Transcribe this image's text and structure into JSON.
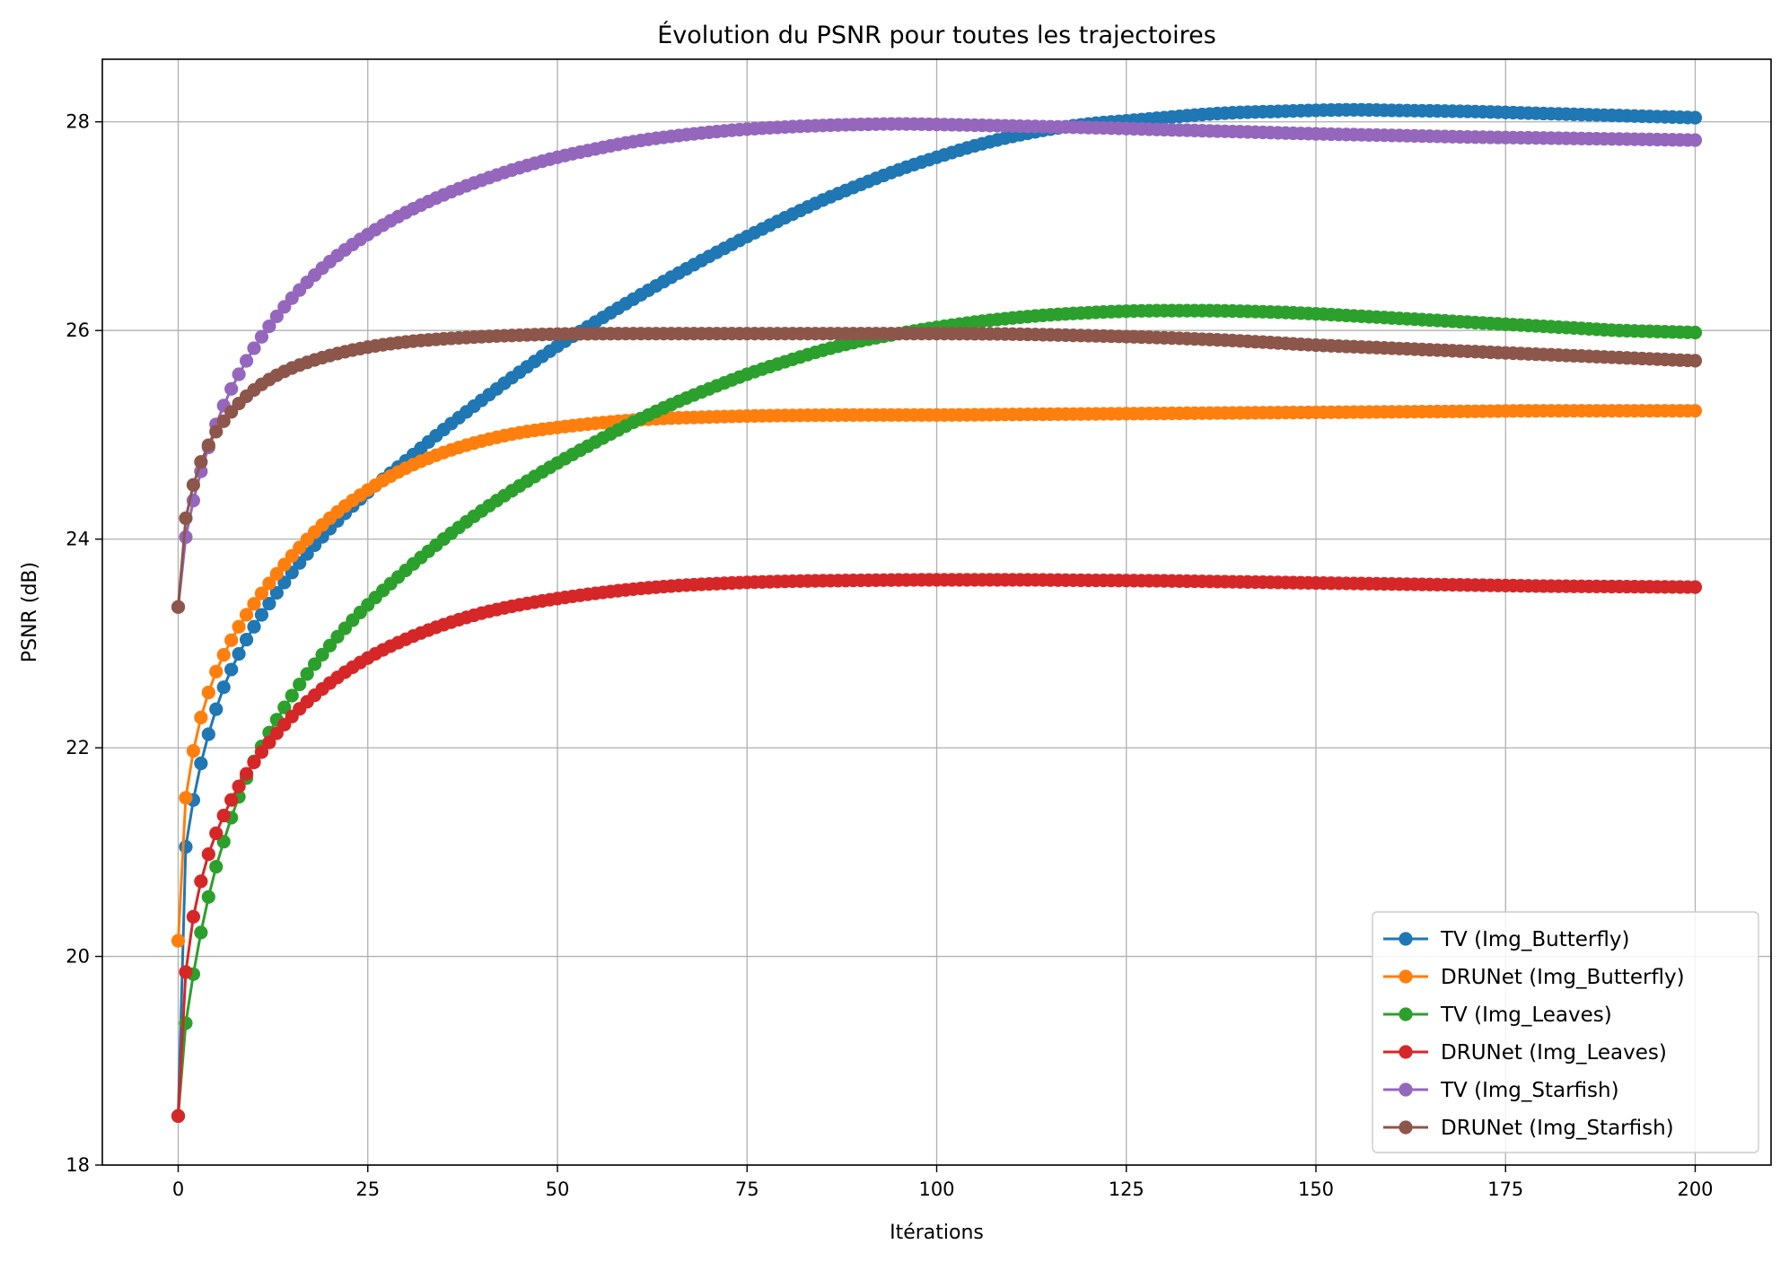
{
  "chart_data": {
    "type": "line",
    "title": "Évolution du PSNR pour toutes les trajectoires",
    "xlabel": "Itérations",
    "ylabel": "PSNR (dB)",
    "xlim": [
      -10,
      210
    ],
    "ylim": [
      18,
      28.6
    ],
    "xticks": [
      0,
      25,
      50,
      75,
      100,
      125,
      150,
      175,
      200
    ],
    "yticks": [
      18,
      20,
      22,
      24,
      26,
      28
    ],
    "grid": true,
    "legend_position": "lower-right",
    "marker": "circle",
    "x": {
      "start": 0,
      "end": 200,
      "step": 1
    },
    "series": [
      {
        "name": "TV (Img_Butterfly)",
        "color": "#1f77b4",
        "anchors": [
          [
            0,
            18.47
          ],
          [
            1,
            21.05
          ],
          [
            2,
            21.5
          ],
          [
            3,
            21.85
          ],
          [
            4,
            22.13
          ],
          [
            5,
            22.37
          ],
          [
            6,
            22.58
          ],
          [
            8,
            22.9
          ],
          [
            10,
            23.16
          ],
          [
            15,
            23.68
          ],
          [
            20,
            24.1
          ],
          [
            25,
            24.45
          ],
          [
            30,
            24.75
          ],
          [
            35,
            25.05
          ],
          [
            40,
            25.33
          ],
          [
            45,
            25.6
          ],
          [
            50,
            25.85
          ],
          [
            55,
            26.08
          ],
          [
            60,
            26.3
          ],
          [
            65,
            26.51
          ],
          [
            70,
            26.71
          ],
          [
            75,
            26.9
          ],
          [
            80,
            27.08
          ],
          [
            85,
            27.25
          ],
          [
            90,
            27.4
          ],
          [
            95,
            27.54
          ],
          [
            100,
            27.66
          ],
          [
            105,
            27.77
          ],
          [
            110,
            27.86
          ],
          [
            115,
            27.93
          ],
          [
            120,
            27.98
          ],
          [
            125,
            28.01
          ],
          [
            130,
            28.04
          ],
          [
            135,
            28.07
          ],
          [
            140,
            28.09
          ],
          [
            145,
            28.1
          ],
          [
            150,
            28.11
          ],
          [
            155,
            28.115
          ],
          [
            160,
            28.11
          ],
          [
            165,
            28.105
          ],
          [
            170,
            28.1
          ],
          [
            175,
            28.09
          ],
          [
            180,
            28.08
          ],
          [
            185,
            28.07
          ],
          [
            190,
            28.06
          ],
          [
            195,
            28.05
          ],
          [
            200,
            28.04
          ]
        ]
      },
      {
        "name": "DRUNet (Img_Butterfly)",
        "color": "#ff7f0e",
        "anchors": [
          [
            0,
            20.15
          ],
          [
            1,
            21.52
          ],
          [
            2,
            21.97
          ],
          [
            3,
            22.29
          ],
          [
            4,
            22.53
          ],
          [
            5,
            22.73
          ],
          [
            6,
            22.89
          ],
          [
            8,
            23.16
          ],
          [
            10,
            23.38
          ],
          [
            15,
            23.84
          ],
          [
            20,
            24.2
          ],
          [
            25,
            24.47
          ],
          [
            30,
            24.68
          ],
          [
            35,
            24.83
          ],
          [
            40,
            24.94
          ],
          [
            45,
            25.02
          ],
          [
            50,
            25.07
          ],
          [
            55,
            25.11
          ],
          [
            60,
            25.14
          ],
          [
            65,
            25.16
          ],
          [
            70,
            25.17
          ],
          [
            75,
            25.18
          ],
          [
            80,
            25.185
          ],
          [
            90,
            25.19
          ],
          [
            100,
            25.19
          ],
          [
            110,
            25.195
          ],
          [
            120,
            25.2
          ],
          [
            130,
            25.205
          ],
          [
            140,
            25.21
          ],
          [
            150,
            25.215
          ],
          [
            160,
            25.22
          ],
          [
            170,
            25.225
          ],
          [
            180,
            25.23
          ],
          [
            190,
            25.23
          ],
          [
            200,
            25.23
          ]
        ]
      },
      {
        "name": "TV (Img_Leaves)",
        "color": "#2ca02c",
        "anchors": [
          [
            0,
            18.47
          ],
          [
            1,
            19.36
          ],
          [
            2,
            19.83
          ],
          [
            3,
            20.23
          ],
          [
            4,
            20.57
          ],
          [
            5,
            20.86
          ],
          [
            6,
            21.1
          ],
          [
            7,
            21.33
          ],
          [
            8,
            21.53
          ],
          [
            10,
            21.87
          ],
          [
            15,
            22.5
          ],
          [
            20,
            22.98
          ],
          [
            25,
            23.37
          ],
          [
            30,
            23.7
          ],
          [
            35,
            24.0
          ],
          [
            40,
            24.27
          ],
          [
            45,
            24.51
          ],
          [
            50,
            24.73
          ],
          [
            55,
            24.93
          ],
          [
            60,
            25.12
          ],
          [
            65,
            25.29
          ],
          [
            70,
            25.44
          ],
          [
            75,
            25.58
          ],
          [
            80,
            25.7
          ],
          [
            85,
            25.81
          ],
          [
            90,
            25.9
          ],
          [
            95,
            25.97
          ],
          [
            100,
            26.03
          ],
          [
            105,
            26.08
          ],
          [
            110,
            26.12
          ],
          [
            115,
            26.15
          ],
          [
            120,
            26.17
          ],
          [
            125,
            26.185
          ],
          [
            130,
            26.19
          ],
          [
            135,
            26.19
          ],
          [
            140,
            26.185
          ],
          [
            145,
            26.175
          ],
          [
            150,
            26.16
          ],
          [
            155,
            26.14
          ],
          [
            160,
            26.12
          ],
          [
            165,
            26.1
          ],
          [
            170,
            26.08
          ],
          [
            175,
            26.06
          ],
          [
            180,
            26.04
          ],
          [
            185,
            26.02
          ],
          [
            190,
            26.0
          ],
          [
            195,
            25.99
          ],
          [
            200,
            25.98
          ]
        ]
      },
      {
        "name": "DRUNet (Img_Leaves)",
        "color": "#d62728",
        "anchors": [
          [
            0,
            18.47
          ],
          [
            1,
            19.85
          ],
          [
            2,
            20.38
          ],
          [
            3,
            20.72
          ],
          [
            4,
            20.98
          ],
          [
            5,
            21.18
          ],
          [
            6,
            21.35
          ],
          [
            7,
            21.5
          ],
          [
            8,
            21.63
          ],
          [
            10,
            21.86
          ],
          [
            15,
            22.3
          ],
          [
            20,
            22.62
          ],
          [
            25,
            22.86
          ],
          [
            30,
            23.04
          ],
          [
            35,
            23.18
          ],
          [
            40,
            23.29
          ],
          [
            45,
            23.37
          ],
          [
            50,
            23.43
          ],
          [
            55,
            23.48
          ],
          [
            60,
            23.52
          ],
          [
            65,
            23.55
          ],
          [
            70,
            23.57
          ],
          [
            75,
            23.585
          ],
          [
            80,
            23.595
          ],
          [
            90,
            23.605
          ],
          [
            100,
            23.61
          ],
          [
            110,
            23.61
          ],
          [
            120,
            23.605
          ],
          [
            130,
            23.6
          ],
          [
            140,
            23.59
          ],
          [
            150,
            23.58
          ],
          [
            160,
            23.57
          ],
          [
            170,
            23.56
          ],
          [
            180,
            23.55
          ],
          [
            190,
            23.545
          ],
          [
            200,
            23.54
          ]
        ]
      },
      {
        "name": "TV (Img_Starfish)",
        "color": "#9467bd",
        "anchors": [
          [
            0,
            23.35
          ],
          [
            1,
            24.02
          ],
          [
            2,
            24.37
          ],
          [
            3,
            24.65
          ],
          [
            4,
            24.88
          ],
          [
            5,
            25.1
          ],
          [
            6,
            25.28
          ],
          [
            7,
            25.44
          ],
          [
            8,
            25.58
          ],
          [
            10,
            25.83
          ],
          [
            12,
            26.04
          ],
          [
            15,
            26.31
          ],
          [
            20,
            26.66
          ],
          [
            25,
            26.92
          ],
          [
            30,
            27.13
          ],
          [
            35,
            27.3
          ],
          [
            40,
            27.44
          ],
          [
            45,
            27.56
          ],
          [
            50,
            27.66
          ],
          [
            55,
            27.74
          ],
          [
            60,
            27.81
          ],
          [
            65,
            27.86
          ],
          [
            70,
            27.9
          ],
          [
            75,
            27.93
          ],
          [
            80,
            27.95
          ],
          [
            85,
            27.965
          ],
          [
            90,
            27.975
          ],
          [
            95,
            27.98
          ],
          [
            100,
            27.975
          ],
          [
            110,
            27.96
          ],
          [
            120,
            27.945
          ],
          [
            130,
            27.925
          ],
          [
            140,
            27.905
          ],
          [
            150,
            27.885
          ],
          [
            160,
            27.87
          ],
          [
            170,
            27.855
          ],
          [
            180,
            27.845
          ],
          [
            190,
            27.835
          ],
          [
            200,
            27.825
          ]
        ]
      },
      {
        "name": "DRUNet (Img_Starfish)",
        "color": "#8c564b",
        "anchors": [
          [
            0,
            23.35
          ],
          [
            1,
            24.2
          ],
          [
            2,
            24.52
          ],
          [
            3,
            24.74
          ],
          [
            4,
            24.9
          ],
          [
            5,
            25.03
          ],
          [
            6,
            25.13
          ],
          [
            8,
            25.3
          ],
          [
            10,
            25.43
          ],
          [
            12,
            25.53
          ],
          [
            15,
            25.64
          ],
          [
            20,
            25.76
          ],
          [
            25,
            25.84
          ],
          [
            30,
            25.89
          ],
          [
            35,
            25.92
          ],
          [
            40,
            25.94
          ],
          [
            45,
            25.955
          ],
          [
            50,
            25.965
          ],
          [
            60,
            25.97
          ],
          [
            70,
            25.97
          ],
          [
            80,
            25.97
          ],
          [
            90,
            25.97
          ],
          [
            100,
            25.97
          ],
          [
            110,
            25.965
          ],
          [
            120,
            25.95
          ],
          [
            130,
            25.93
          ],
          [
            140,
            25.9
          ],
          [
            150,
            25.86
          ],
          [
            160,
            25.83
          ],
          [
            170,
            25.8
          ],
          [
            180,
            25.77
          ],
          [
            190,
            25.74
          ],
          [
            200,
            25.71
          ]
        ]
      }
    ]
  }
}
